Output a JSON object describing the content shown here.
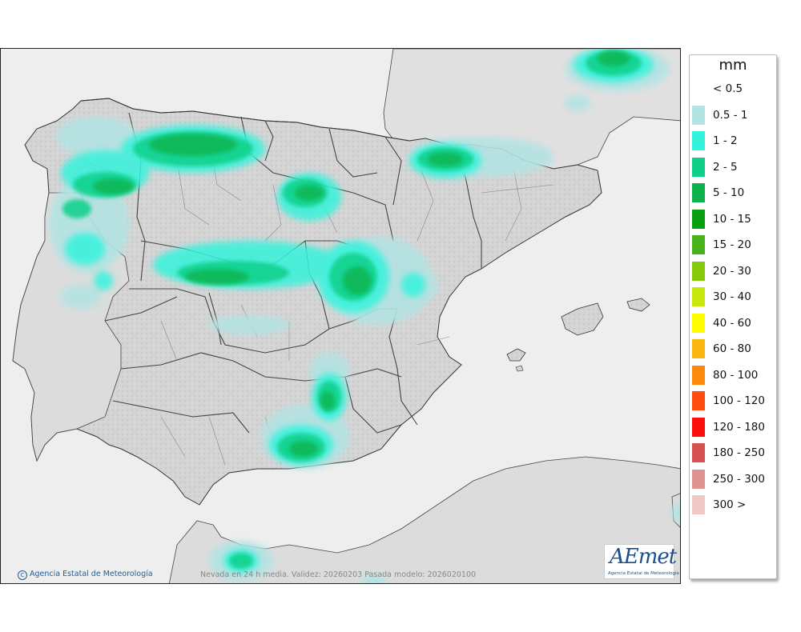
{
  "legend": {
    "title": "mm",
    "items": [
      {
        "label": "< 0.5",
        "color": "#ffffff"
      },
      {
        "label": "0.5 - 1",
        "color": "#b4e3e3"
      },
      {
        "label": "1 - 2",
        "color": "#34f3dc"
      },
      {
        "label": "2 - 5",
        "color": "#0fd088"
      },
      {
        "label": "5 - 10",
        "color": "#0db24c"
      },
      {
        "label": "10 - 15",
        "color": "#0a9e12"
      },
      {
        "label": "15 - 20",
        "color": "#45b21e"
      },
      {
        "label": "20 - 30",
        "color": "#86c90c"
      },
      {
        "label": "30 - 40",
        "color": "#c6e80e"
      },
      {
        "label": "40 - 60",
        "color": "#fdfb00"
      },
      {
        "label": "60 - 80",
        "color": "#fdb712"
      },
      {
        "label": "80 - 100",
        "color": "#fd8a0e"
      },
      {
        "label": "100 - 120",
        "color": "#fd4c10"
      },
      {
        "label": "120 - 180",
        "color": "#fb0f0c"
      },
      {
        "label": "180 - 250",
        "color": "#d55252"
      },
      {
        "label": "250 - 300",
        "color": "#df9393"
      },
      {
        "label": "300 >",
        "color": "#f0c8c8"
      }
    ]
  },
  "footer": {
    "credit": "Agencia Estatal de Meteorología",
    "validity": "Nevada en 24 h media. Validez: 20260203 Pasada modelo: 2026020100"
  },
  "logo": {
    "word": "AEmet",
    "subtitle": "Agencia Estatal de Meteorología"
  },
  "colors": {
    "sea": "#eeeeee",
    "land": "#d6d6d6",
    "border": "#333333"
  }
}
